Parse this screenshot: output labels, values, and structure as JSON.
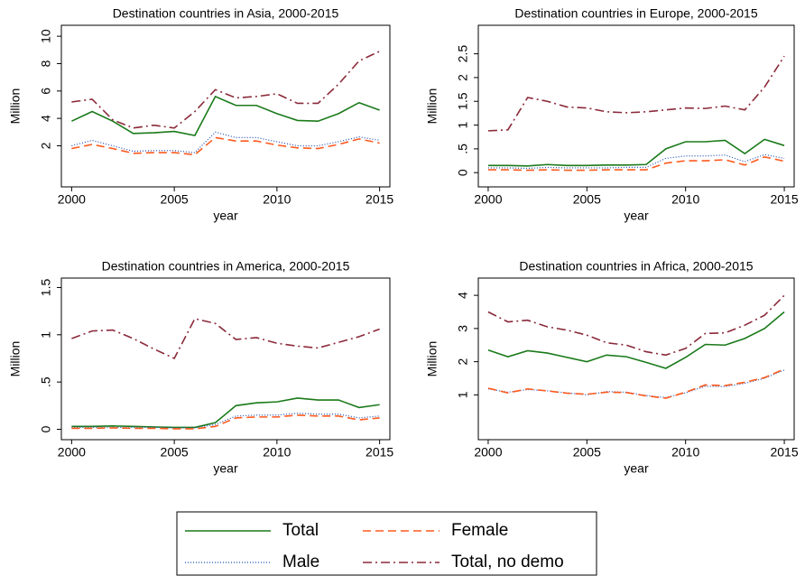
{
  "chart_data": [
    {
      "type": "line",
      "title": "Destination countries in Asia, 2000-2015",
      "xlabel": "year",
      "ylabel": "Million",
      "x": [
        2000,
        2001,
        2002,
        2003,
        2004,
        2005,
        2006,
        2007,
        2008,
        2009,
        2010,
        2011,
        2012,
        2013,
        2014,
        2015
      ],
      "xlim": [
        1999.5,
        2015.5
      ],
      "xticks": [
        2000,
        2005,
        2010,
        2015
      ],
      "ylim": [
        -1,
        10.8
      ],
      "yticks": [
        2,
        4,
        6,
        8,
        10
      ],
      "series": [
        {
          "name": "Total",
          "color": "#1a7a1a",
          "dash": "solid",
          "values": [
            3.8,
            4.5,
            3.8,
            2.9,
            2.95,
            3.05,
            2.75,
            5.6,
            4.95,
            4.95,
            4.35,
            3.85,
            3.8,
            4.35,
            5.15,
            4.6
          ]
        },
        {
          "name": "Male",
          "color": "#1f4fb5",
          "dash": "dot",
          "values": [
            2.0,
            2.4,
            2.0,
            1.6,
            1.65,
            1.65,
            1.5,
            3.0,
            2.6,
            2.6,
            2.3,
            2.0,
            2.0,
            2.3,
            2.65,
            2.4
          ]
        },
        {
          "name": "Female",
          "color": "#ff5a1e",
          "dash": "dash",
          "values": [
            1.8,
            2.1,
            1.8,
            1.45,
            1.5,
            1.5,
            1.35,
            2.6,
            2.35,
            2.35,
            2.05,
            1.85,
            1.8,
            2.1,
            2.5,
            2.2
          ]
        },
        {
          "name": "Total, no demo",
          "color": "#8b2a3a",
          "dash": "dashdot",
          "values": [
            5.2,
            5.4,
            3.9,
            3.3,
            3.5,
            3.3,
            4.5,
            6.1,
            5.5,
            5.6,
            5.8,
            5.1,
            5.1,
            6.5,
            8.2,
            8.9
          ]
        }
      ]
    },
    {
      "type": "line",
      "title": "Destination countries in Europe, 2000-2015",
      "xlabel": "year",
      "ylabel": "Million",
      "x": [
        2000,
        2001,
        2002,
        2003,
        2004,
        2005,
        2006,
        2007,
        2008,
        2009,
        2010,
        2011,
        2012,
        2013,
        2014,
        2015
      ],
      "xlim": [
        1999.5,
        2015.5
      ],
      "xticks": [
        2000,
        2005,
        2010,
        2015
      ],
      "ylim": [
        -0.3,
        3.1
      ],
      "yticks": [
        0,
        {
          "value": 0.5,
          "label": ".5"
        },
        1,
        {
          "value": 1.5,
          "label": "1.5"
        },
        2,
        {
          "value": 2.5,
          "label": "2.5"
        }
      ],
      "series": [
        {
          "color": "#1a7a1a",
          "dash": "solid",
          "values": [
            0.15,
            0.15,
            0.14,
            0.17,
            0.15,
            0.15,
            0.16,
            0.16,
            0.17,
            0.5,
            0.65,
            0.65,
            0.68,
            0.4,
            0.7,
            0.57
          ]
        },
        {
          "color": "#1f4fb5",
          "dash": "dot",
          "values": [
            0.1,
            0.1,
            0.09,
            0.11,
            0.1,
            0.1,
            0.1,
            0.11,
            0.11,
            0.3,
            0.35,
            0.35,
            0.37,
            0.23,
            0.38,
            0.3
          ]
        },
        {
          "color": "#ff5a1e",
          "dash": "dash",
          "values": [
            0.06,
            0.06,
            0.05,
            0.06,
            0.05,
            0.05,
            0.06,
            0.06,
            0.06,
            0.2,
            0.25,
            0.25,
            0.27,
            0.16,
            0.33,
            0.24
          ]
        },
        {
          "color": "#8b2a3a",
          "dash": "dashdot",
          "values": [
            0.88,
            0.9,
            1.58,
            1.5,
            1.38,
            1.36,
            1.28,
            1.26,
            1.28,
            1.32,
            1.36,
            1.35,
            1.4,
            1.32,
            1.8,
            2.45
          ]
        }
      ]
    },
    {
      "type": "line",
      "title": "Destination countries in America, 2000-2015",
      "xlabel": "year",
      "ylabel": "Million",
      "x": [
        2000,
        2001,
        2002,
        2003,
        2004,
        2005,
        2006,
        2007,
        2008,
        2009,
        2010,
        2011,
        2012,
        2013,
        2014,
        2015
      ],
      "xlim": [
        1999.5,
        2015.5
      ],
      "xticks": [
        2000,
        2005,
        2010,
        2015
      ],
      "ylim": [
        -0.11,
        1.6
      ],
      "yticks": [
        0,
        {
          "value": 0.5,
          "label": ".5"
        },
        1,
        {
          "value": 1.5,
          "label": "1.5"
        }
      ],
      "series": [
        {
          "color": "#1a7a1a",
          "dash": "solid",
          "values": [
            0.03,
            0.03,
            0.035,
            0.03,
            0.025,
            0.02,
            0.02,
            0.07,
            0.25,
            0.28,
            0.29,
            0.33,
            0.31,
            0.31,
            0.23,
            0.26
          ]
        },
        {
          "color": "#1f4fb5",
          "dash": "dot",
          "values": [
            0.02,
            0.02,
            0.02,
            0.02,
            0.02,
            0.015,
            0.015,
            0.05,
            0.14,
            0.15,
            0.15,
            0.17,
            0.16,
            0.16,
            0.12,
            0.14
          ]
        },
        {
          "color": "#ff5a1e",
          "dash": "dash",
          "values": [
            0.01,
            0.01,
            0.015,
            0.01,
            0.01,
            0.005,
            0.005,
            0.03,
            0.12,
            0.13,
            0.13,
            0.15,
            0.14,
            0.14,
            0.1,
            0.12
          ]
        },
        {
          "color": "#8b2a3a",
          "dash": "dashdot",
          "values": [
            0.96,
            1.04,
            1.05,
            0.96,
            0.85,
            0.75,
            1.17,
            1.12,
            0.95,
            0.97,
            0.91,
            0.88,
            0.86,
            0.92,
            0.98,
            1.06
          ]
        }
      ]
    },
    {
      "type": "line",
      "title": "Destination countries in Africa, 2000-2015",
      "xlabel": "year",
      "ylabel": "Million",
      "x": [
        2000,
        2001,
        2002,
        2003,
        2004,
        2005,
        2006,
        2007,
        2008,
        2009,
        2010,
        2011,
        2012,
        2013,
        2014,
        2015
      ],
      "xlim": [
        1999.5,
        2015.5
      ],
      "xticks": [
        2000,
        2005,
        2010,
        2015
      ],
      "ylim": [
        -0.35,
        4.52
      ],
      "yticks": [
        1,
        2,
        3,
        4
      ],
      "series": [
        {
          "color": "#1a7a1a",
          "dash": "solid",
          "values": [
            2.35,
            2.15,
            2.33,
            2.26,
            2.13,
            2.0,
            2.2,
            2.15,
            1.98,
            1.8,
            2.13,
            2.52,
            2.5,
            2.7,
            3.0,
            3.5
          ]
        },
        {
          "color": "#1f4fb5",
          "dash": "dot",
          "values": [
            1.18,
            1.08,
            1.16,
            1.12,
            1.06,
            1.0,
            1.1,
            1.08,
            0.98,
            0.92,
            1.06,
            1.26,
            1.25,
            1.35,
            1.5,
            1.75
          ]
        },
        {
          "color": "#ff5a1e",
          "dash": "dash",
          "values": [
            1.2,
            1.06,
            1.18,
            1.12,
            1.05,
            1.02,
            1.08,
            1.07,
            0.97,
            0.9,
            1.08,
            1.3,
            1.28,
            1.38,
            1.52,
            1.78
          ]
        },
        {
          "color": "#8b2a3a",
          "dash": "dashdot",
          "values": [
            3.5,
            3.2,
            3.25,
            3.05,
            2.95,
            2.8,
            2.57,
            2.5,
            2.3,
            2.2,
            2.4,
            2.85,
            2.87,
            3.1,
            3.4,
            4.0
          ]
        }
      ]
    }
  ]
}
